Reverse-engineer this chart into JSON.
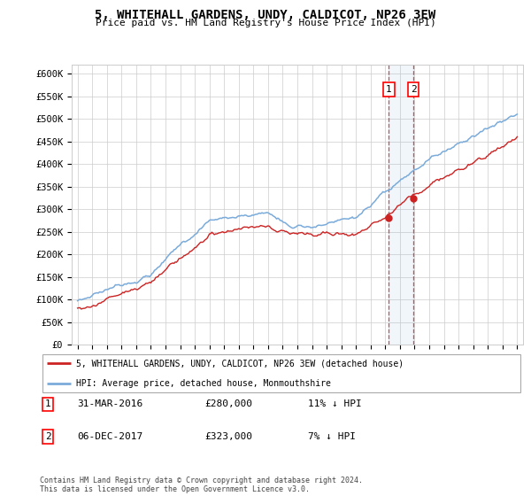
{
  "title": "5, WHITEHALL GARDENS, UNDY, CALDICOT, NP26 3EW",
  "subtitle": "Price paid vs. HM Land Registry's House Price Index (HPI)",
  "ylabel_ticks": [
    "£0",
    "£50K",
    "£100K",
    "£150K",
    "£200K",
    "£250K",
    "£300K",
    "£350K",
    "£400K",
    "£450K",
    "£500K",
    "£550K",
    "£600K"
  ],
  "ylim": [
    0,
    620000
  ],
  "yticks": [
    0,
    50000,
    100000,
    150000,
    200000,
    250000,
    300000,
    350000,
    400000,
    450000,
    500000,
    550000,
    600000
  ],
  "hpi_color": "#7aabda",
  "price_color": "#cc2222",
  "legend_label_price": "5, WHITEHALL GARDENS, UNDY, CALDICOT, NP26 3EW (detached house)",
  "legend_label_hpi": "HPI: Average price, detached house, Monmouthshire",
  "sale1_date": 2016.25,
  "sale1_price": 280000,
  "sale2_date": 2017.92,
  "sale2_price": 323000,
  "footnote": "Contains HM Land Registry data © Crown copyright and database right 2024.\nThis data is licensed under the Open Government Licence v3.0.",
  "table": [
    {
      "num": "1",
      "date": "31-MAR-2016",
      "price": "£280,000",
      "note": "11% ↓ HPI"
    },
    {
      "num": "2",
      "date": "06-DEC-2017",
      "price": "£323,000",
      "note": "7% ↓ HPI"
    }
  ]
}
